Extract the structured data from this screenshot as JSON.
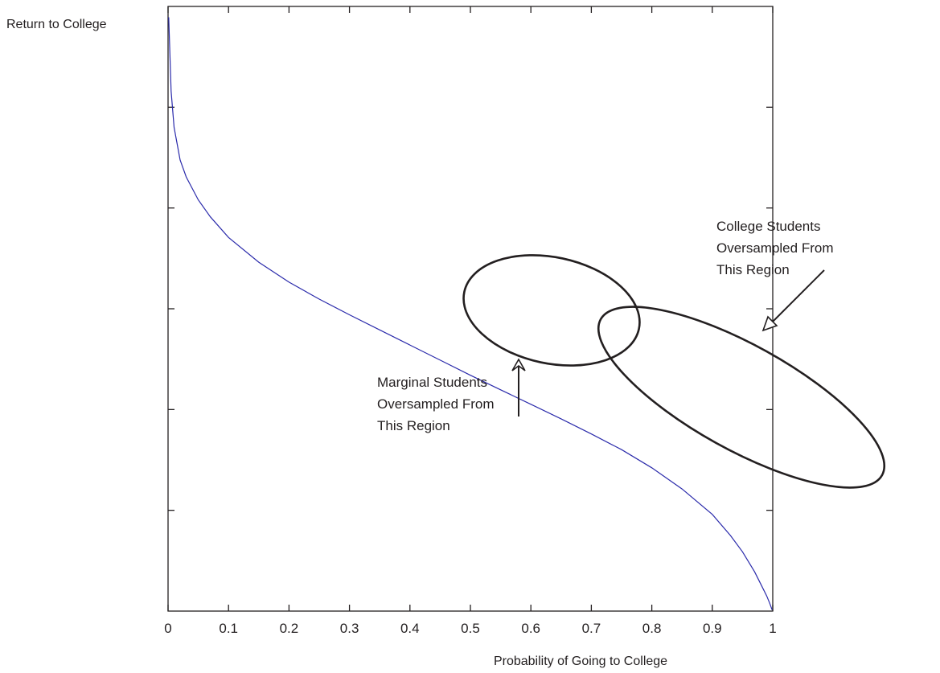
{
  "chart_data": {
    "type": "line",
    "title": "",
    "xlabel": "Probability of Going to College",
    "ylabel": "Return to College",
    "xlim": [
      0,
      1
    ],
    "x_ticks": [
      0,
      0.1,
      0.2,
      0.3,
      0.4,
      0.5,
      0.6,
      0.7,
      0.8,
      0.9,
      1
    ],
    "x_tick_labels": [
      "0",
      "0.1",
      "0.2",
      "0.3",
      "0.4",
      "0.5",
      "0.6",
      "0.7",
      "0.8",
      "0.9",
      "1"
    ],
    "y_tick_count": 6,
    "y_tick_labels": [],
    "grid": false,
    "series": [
      {
        "color": "#2b2bab",
        "x": [
          0.001,
          0.005,
          0.01,
          0.02,
          0.03,
          0.05,
          0.07,
          0.1,
          0.15,
          0.2,
          0.25,
          0.3,
          0.35,
          0.4,
          0.45,
          0.5,
          0.55,
          0.6,
          0.65,
          0.7,
          0.75,
          0.8,
          0.85,
          0.9,
          0.93,
          0.95,
          0.97,
          0.98,
          0.99,
          0.995,
          0.999
        ],
        "y": [
          0.982,
          0.86,
          0.8,
          0.746,
          0.718,
          0.68,
          0.652,
          0.618,
          0.577,
          0.544,
          0.516,
          0.49,
          0.465,
          0.44,
          0.415,
          0.39,
          0.366,
          0.342,
          0.318,
          0.293,
          0.267,
          0.237,
          0.202,
          0.16,
          0.125,
          0.098,
          0.065,
          0.045,
          0.025,
          0.013,
          0.002
        ]
      }
    ],
    "annotations": [
      {
        "lines": [
          "College Students",
          "Oversampled From",
          "This Region"
        ]
      },
      {
        "lines": [
          "Marginal Students",
          "Oversampled From",
          "This Region"
        ]
      }
    ],
    "line_color": "#2b2bab",
    "annotation_color": "#231f20"
  }
}
